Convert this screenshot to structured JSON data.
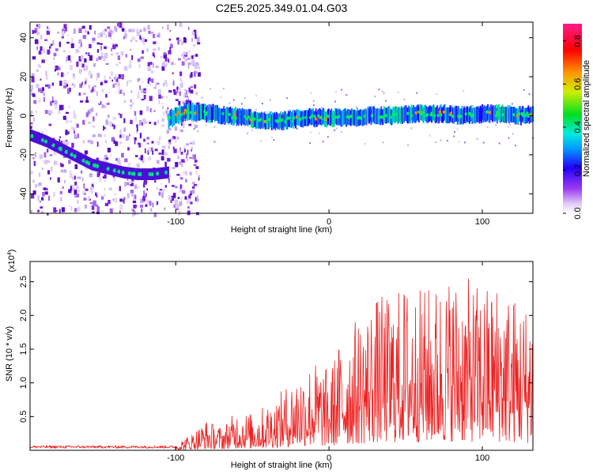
{
  "title": "C2E5.2025.349.01.04.G03",
  "colors": {
    "snr_line": "#ee2222",
    "spectrum_track": "#00cc88",
    "spectrum_scatter": "#7a22dd"
  },
  "chart_data": [
    {
      "type": "heatmap",
      "xlabel": "Height of straight line (km)",
      "ylabel": "Frequency (Hz)",
      "xlim": [
        -195,
        133
      ],
      "ylim": [
        -50,
        48
      ],
      "xticks": [
        -100,
        0,
        100
      ],
      "xtick_labels": [
        "-100",
        "0",
        "100"
      ],
      "yticks": [
        -40,
        -20,
        0,
        20,
        40
      ],
      "ytick_labels": [
        "-40",
        "-20",
        "0",
        "20",
        "40"
      ],
      "grid": false,
      "track_descending": {
        "x": [
          -195,
          -185,
          -175,
          -165,
          -155,
          -145,
          -135,
          -125,
          -115,
          -105
        ],
        "y": [
          -10,
          -13,
          -17,
          -21,
          -25,
          -27,
          -29,
          -30,
          -30,
          -29
        ]
      },
      "track_flat": {
        "x": [
          -105,
          -100,
          -95,
          -85,
          -75,
          -65,
          -55,
          -45,
          -35,
          -25,
          -15,
          -5,
          5,
          15,
          25,
          35,
          45,
          55,
          65,
          75,
          85,
          95,
          105,
          115,
          125,
          133
        ],
        "y": [
          -2,
          0,
          2,
          2,
          1,
          0,
          -1,
          -2,
          -3,
          -2,
          -1,
          -1,
          -1,
          -1,
          0,
          0,
          0,
          1,
          1,
          1,
          0,
          1,
          1,
          1,
          0,
          1
        ]
      },
      "colorbar": {
        "label": "Normalized spectral amplitude",
        "range": [
          0.0,
          0.88
        ],
        "ticks": [
          0.0,
          0.2,
          0.4,
          0.6,
          0.8
        ],
        "tick_labels": [
          "0.0",
          "0.2",
          "0.4",
          "0.6",
          "0.8"
        ]
      }
    },
    {
      "type": "line",
      "xlabel": "Height of straight line (km)",
      "ylabel": "SNR (10 * v/v)",
      "y_multiplier": "(x10",
      "y_multiplier_exp": "4",
      "y_multiplier_close": ")",
      "xlim": [
        -195,
        133
      ],
      "ylim": [
        0,
        2.8
      ],
      "xticks": [
        -100,
        0,
        100
      ],
      "xtick_labels": [
        "-100",
        "0",
        "100"
      ],
      "yticks": [
        0.5,
        1.0,
        1.5,
        2.0,
        2.5
      ],
      "ytick_labels": [
        "0.5",
        "1.0",
        "1.5",
        "2.0",
        "2.5"
      ],
      "grid": false,
      "series": [
        {
          "envelope_x": [
            -195,
            -160,
            -120,
            -100,
            -90,
            -80,
            -70,
            -60,
            -50,
            -40,
            -30,
            -20,
            -10,
            0,
            10,
            20,
            30,
            40,
            50,
            60,
            70,
            80,
            90,
            100,
            110,
            120,
            130,
            133
          ],
          "envelope_y": [
            0.05,
            0.05,
            0.06,
            0.1,
            0.25,
            0.45,
            0.35,
            0.6,
            0.55,
            0.7,
            0.9,
            1.2,
            1.35,
            1.2,
            1.8,
            2.0,
            2.3,
            2.3,
            2.5,
            2.4,
            2.5,
            2.65,
            2.55,
            2.45,
            2.55,
            2.35,
            2.2,
            2.4
          ]
        }
      ]
    }
  ]
}
